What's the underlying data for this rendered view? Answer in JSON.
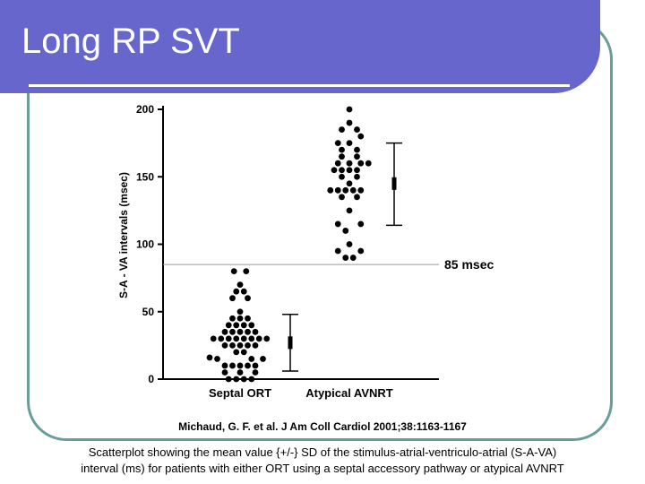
{
  "slide": {
    "title": "Long RP SVT",
    "citation": "Michaud, G. F. et al. J Am Coll Cardiol 2001;38:1163-1167",
    "caption_line1": "Scatterplot showing the mean value {+/-} SD of the stimulus-atrial-ventriculo-atrial (S-A-VA)",
    "caption_line2": "interval (ms) for patients with either ORT using a septal accessory pathway or atypical AVNRT",
    "colors": {
      "header": "#6666cc",
      "frame": "#6a9c9a"
    }
  },
  "chart_data": {
    "type": "scatter",
    "ylabel": "S-A - VA intervals (msec)",
    "xlabel": "",
    "title": "",
    "ylim": [
      0,
      200
    ],
    "yticks": [
      0,
      50,
      100,
      150,
      200
    ],
    "categories": [
      "Septal ORT",
      "Atypical AVNRT"
    ],
    "reference_line": {
      "value": 85,
      "label": "85 msec"
    },
    "series": [
      {
        "category": "Septal ORT",
        "points": [
          {
            "offset": -0.8,
            "y": 80
          },
          {
            "offset": 0.8,
            "y": 80
          },
          {
            "offset": 0,
            "y": 70
          },
          {
            "offset": -0.5,
            "y": 65
          },
          {
            "offset": 0.5,
            "y": 65
          },
          {
            "offset": -1,
            "y": 60
          },
          {
            "offset": 1,
            "y": 60
          },
          {
            "offset": 0,
            "y": 50
          },
          {
            "offset": -1,
            "y": 45
          },
          {
            "offset": 0,
            "y": 45
          },
          {
            "offset": 1,
            "y": 45
          },
          {
            "offset": -1.5,
            "y": 40
          },
          {
            "offset": -0.5,
            "y": 40
          },
          {
            "offset": 0.5,
            "y": 40
          },
          {
            "offset": 1.5,
            "y": 40
          },
          {
            "offset": -2,
            "y": 35
          },
          {
            "offset": -1,
            "y": 35
          },
          {
            "offset": 0,
            "y": 35
          },
          {
            "offset": 1,
            "y": 35
          },
          {
            "offset": 2,
            "y": 35
          },
          {
            "offset": -3.5,
            "y": 30
          },
          {
            "offset": -2.5,
            "y": 30
          },
          {
            "offset": -1.5,
            "y": 30
          },
          {
            "offset": -0.5,
            "y": 30
          },
          {
            "offset": 0.5,
            "y": 30
          },
          {
            "offset": 1.5,
            "y": 30
          },
          {
            "offset": 2.5,
            "y": 30
          },
          {
            "offset": 3.5,
            "y": 30
          },
          {
            "offset": -2,
            "y": 25
          },
          {
            "offset": -1,
            "y": 25
          },
          {
            "offset": 0,
            "y": 25
          },
          {
            "offset": 1,
            "y": 25
          },
          {
            "offset": 2,
            "y": 25
          },
          {
            "offset": -0.5,
            "y": 20
          },
          {
            "offset": 0.5,
            "y": 20
          },
          {
            "offset": -4,
            "y": 16
          },
          {
            "offset": -3,
            "y": 15
          },
          {
            "offset": 1.5,
            "y": 15
          },
          {
            "offset": 3,
            "y": 15
          },
          {
            "offset": -2,
            "y": 10
          },
          {
            "offset": -1,
            "y": 10
          },
          {
            "offset": 0,
            "y": 10
          },
          {
            "offset": 1,
            "y": 10
          },
          {
            "offset": 2,
            "y": 10
          },
          {
            "offset": -2,
            "y": 5
          },
          {
            "offset": 0,
            "y": 5
          },
          {
            "offset": 2,
            "y": 5
          },
          {
            "offset": -1.5,
            "y": 0
          },
          {
            "offset": -0.5,
            "y": 0
          },
          {
            "offset": 0.5,
            "y": 0
          },
          {
            "offset": 1.5,
            "y": 0
          }
        ],
        "mean": 27,
        "sd_low": 6,
        "sd_high": 48
      },
      {
        "category": "Atypical AVNRT",
        "points": [
          {
            "offset": 0,
            "y": 200
          },
          {
            "offset": 0,
            "y": 190
          },
          {
            "offset": -1,
            "y": 185
          },
          {
            "offset": 1,
            "y": 185
          },
          {
            "offset": 1.5,
            "y": 180
          },
          {
            "offset": -1.5,
            "y": 175
          },
          {
            "offset": 0,
            "y": 175
          },
          {
            "offset": -1,
            "y": 170
          },
          {
            "offset": 1,
            "y": 170
          },
          {
            "offset": -1,
            "y": 165
          },
          {
            "offset": 1,
            "y": 165
          },
          {
            "offset": -1.5,
            "y": 160
          },
          {
            "offset": 0,
            "y": 160
          },
          {
            "offset": 1.5,
            "y": 160
          },
          {
            "offset": 2.5,
            "y": 160
          },
          {
            "offset": -2,
            "y": 155
          },
          {
            "offset": -1,
            "y": 155
          },
          {
            "offset": 0,
            "y": 155
          },
          {
            "offset": 1,
            "y": 155
          },
          {
            "offset": -1,
            "y": 150
          },
          {
            "offset": 1,
            "y": 150
          },
          {
            "offset": 0,
            "y": 145
          },
          {
            "offset": -2.5,
            "y": 140
          },
          {
            "offset": -1.5,
            "y": 140
          },
          {
            "offset": -0.5,
            "y": 140
          },
          {
            "offset": 0.5,
            "y": 140
          },
          {
            "offset": 1.5,
            "y": 140
          },
          {
            "offset": -1,
            "y": 135
          },
          {
            "offset": 1,
            "y": 135
          },
          {
            "offset": 0,
            "y": 125
          },
          {
            "offset": -1.5,
            "y": 115
          },
          {
            "offset": 1.5,
            "y": 115
          },
          {
            "offset": -0.5,
            "y": 110
          },
          {
            "offset": 0,
            "y": 100
          },
          {
            "offset": -1.5,
            "y": 95
          },
          {
            "offset": 1.5,
            "y": 95
          },
          {
            "offset": -0.5,
            "y": 90
          },
          {
            "offset": 0.5,
            "y": 90
          }
        ],
        "mean": 145,
        "sd_low": 114,
        "sd_high": 175
      }
    ]
  }
}
